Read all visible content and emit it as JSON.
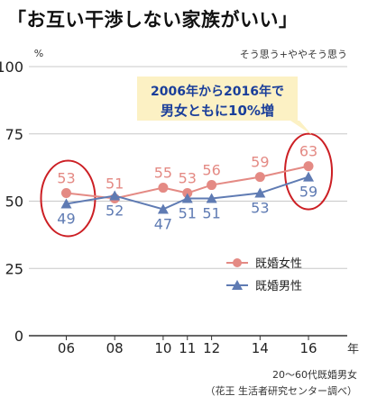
{
  "title": "「お互い干渉しない家族がいい」",
  "chart_data": {
    "type": "line",
    "subtitle": "そう思う+ややそう思う",
    "y_unit": "%",
    "ylim": [
      0,
      100
    ],
    "yticks": [
      0,
      25,
      50,
      75,
      100
    ],
    "x": [
      2006,
      2008,
      2010,
      2011,
      2012,
      2014,
      2016
    ],
    "x_tick_labels": [
      "06",
      "08",
      "10",
      "11",
      "12",
      "14",
      "16"
    ],
    "x_unit": "年",
    "series": [
      {
        "name": "既婚女性",
        "values": [
          53,
          51,
          55,
          53,
          56,
          59,
          63
        ],
        "color": "#e48a84",
        "marker": "circle"
      },
      {
        "name": "既婚男性",
        "values": [
          49,
          52,
          47,
          51,
          51,
          53,
          59
        ],
        "color": "#5f7bb3",
        "marker": "triangle"
      }
    ],
    "callout": {
      "line1": "2006年から2016年で",
      "line2": "男女ともに10%増"
    },
    "highlight_circle_color": "#cc1f24",
    "callout_bg": "#fcf1c4",
    "callout_text_color": "#1a3e9a",
    "grid_color": "#c8c8c8",
    "axis_color": "#333333",
    "legend_position": "lower-right"
  },
  "footnote": {
    "line1": "20～60代既婚男女",
    "line2": "（花王 生活者研究センター調べ）"
  }
}
